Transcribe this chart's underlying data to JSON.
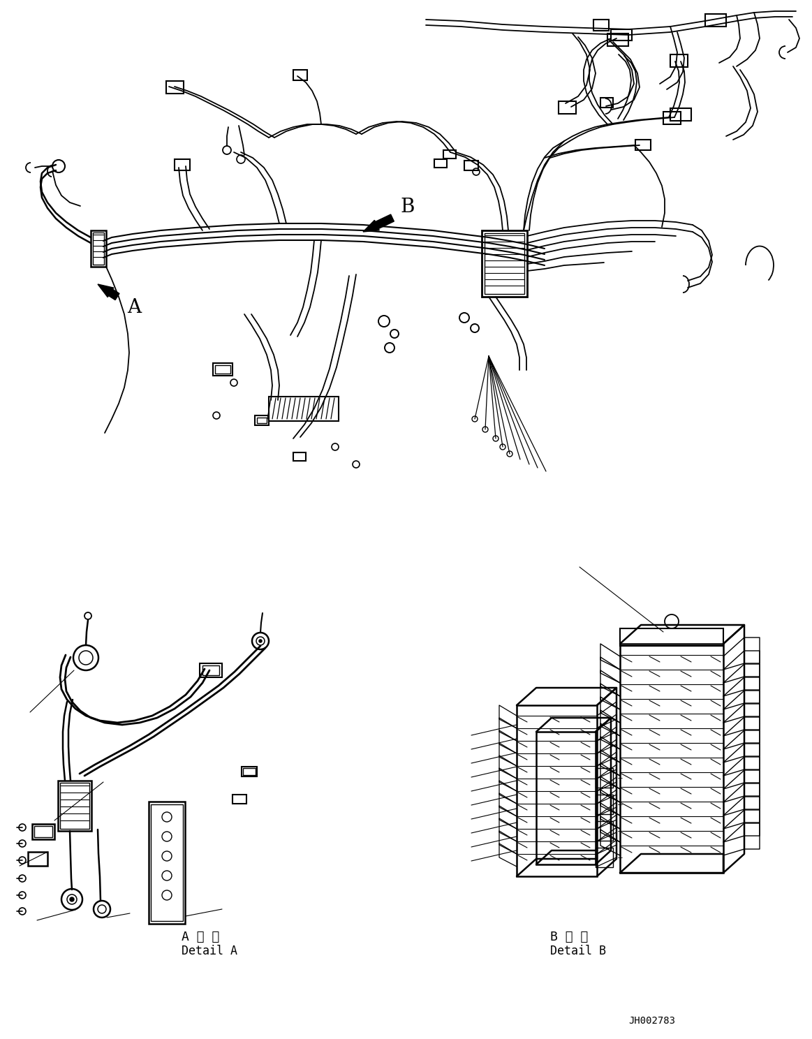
{
  "bg_color": "#ffffff",
  "line_color": "#000000",
  "label_A": "A",
  "label_B": "B",
  "detail_A_jp": "A 詳 細",
  "detail_A_en": "Detail A",
  "detail_B_jp": "B 詳 細",
  "detail_B_en": "Detail B",
  "drawing_id": "JH002783",
  "figsize": [
    11.63,
    14.88
  ],
  "dpi": 100
}
